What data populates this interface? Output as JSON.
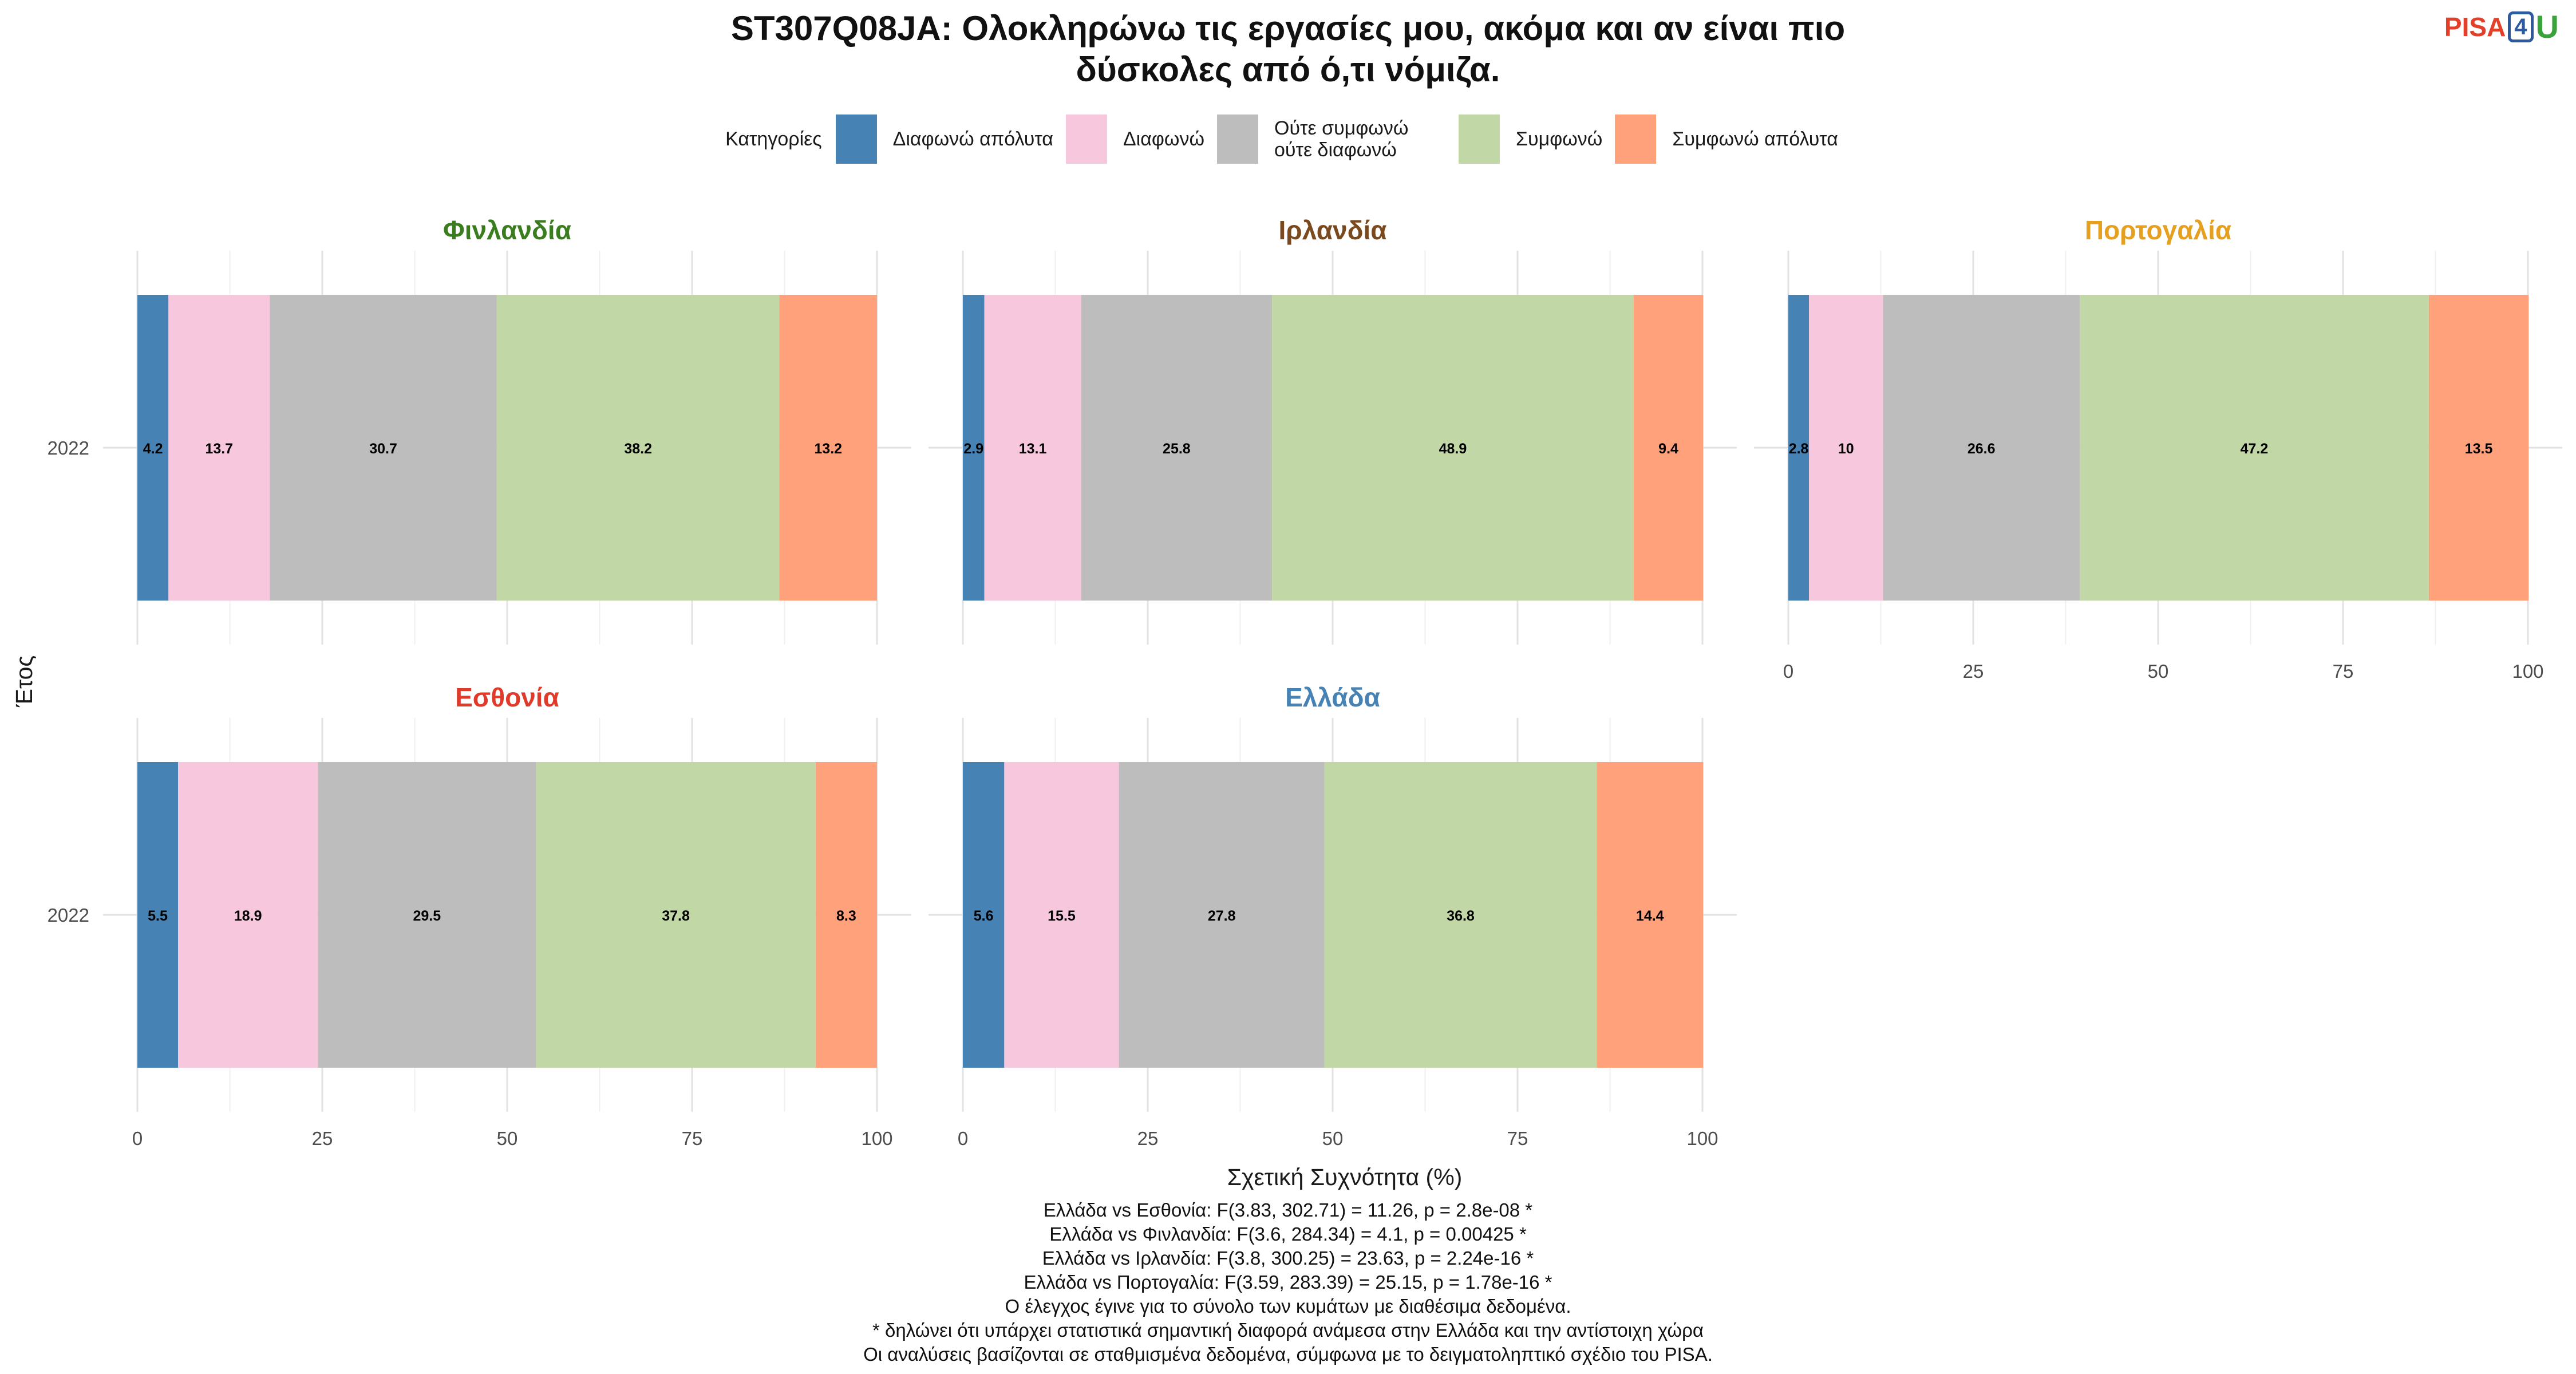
{
  "title_lines": [
    "ST307Q08JA: Ολοκληρώνω τις εργασίες μου, ακόμα και αν είναι πιο",
    "δύσκολες από ό,τι νόμιζα."
  ],
  "logo": {
    "p1": "PISA",
    "p2": "4",
    "p3": "U"
  },
  "legend": {
    "title": "Κατηγορίες",
    "items": [
      {
        "label": "Διαφωνώ απόλυτα",
        "color": "#4682b4"
      },
      {
        "label": "Διαφωνώ",
        "color": "#f7c8dd"
      },
      {
        "label": "Ούτε συμφωνώ ούτε διαφωνώ",
        "color": "#bdbdbd"
      },
      {
        "label": "Συμφωνώ",
        "color": "#c2d7a6"
      },
      {
        "label": "Συμφωνώ απόλυτα",
        "color": "#ffa17a"
      }
    ]
  },
  "chart_data": {
    "type": "bar",
    "orientation": "horizontal",
    "stacked": true,
    "xlabel": "Σχετική Συχνότητα (%)",
    "ylabel": "Έτος",
    "xlim": [
      0,
      100
    ],
    "xticks": [
      0,
      25,
      50,
      75,
      100
    ],
    "categories": [
      "Διαφωνώ απόλυτα",
      "Διαφωνώ",
      "Ούτε συμφωνώ ούτε διαφωνώ",
      "Συμφωνώ",
      "Συμφωνώ απόλυτα"
    ],
    "colors": [
      "#4682b4",
      "#f7c8dd",
      "#bdbdbd",
      "#c2d7a6",
      "#ffa17a"
    ],
    "grid": true,
    "legend_position": "top",
    "panels": [
      {
        "name": "Φινλανδία",
        "color": "#3a7d1f",
        "year": "2022",
        "values": [
          4.2,
          13.7,
          30.7,
          38.2,
          13.2
        ]
      },
      {
        "name": "Ιρλανδία",
        "color": "#7a4a1e",
        "year": "2022",
        "values": [
          2.9,
          13.1,
          25.8,
          48.9,
          9.4
        ]
      },
      {
        "name": "Πορτογαλία",
        "color": "#e5a020",
        "year": "2022",
        "values": [
          2.8,
          10,
          26.6,
          47.2,
          13.5
        ]
      },
      {
        "name": "Εσθονία",
        "color": "#e03a2a",
        "year": "2022",
        "values": [
          5.5,
          18.9,
          29.5,
          37.8,
          8.3
        ]
      },
      {
        "name": "Ελλάδα",
        "color": "#4682b4",
        "year": "2022",
        "values": [
          5.6,
          15.5,
          27.8,
          36.8,
          14.4
        ]
      }
    ]
  },
  "notes": [
    "Ελλάδα vs Εσθονία: F(3.83, 302.71) = 11.26, p = 2.8e-08 *",
    "Ελλάδα vs Φινλανδία: F(3.6, 284.34) = 4.1, p = 0.00425 *",
    "Ελλάδα vs Ιρλανδία: F(3.8, 300.25) = 23.63, p = 2.24e-16 *",
    "Ελλάδα vs Πορτογαλία: F(3.59, 283.39) = 25.15, p = 1.78e-16 *",
    "Ο έλεγχος έγινε για το σύνολο των κυμάτων με διαθέσιμα δεδομένα.",
    "* δηλώνει ότι υπάρχει στατιστικά σημαντική διαφορά ανάμεσα στην Ελλάδα και την αντίστοιχη χώρα",
    "Οι αναλύσεις βασίζονται σε σταθμισμένα δεδομένα, σύμφωνα με το δειγματοληπτικό σχέδιο του PISA."
  ]
}
